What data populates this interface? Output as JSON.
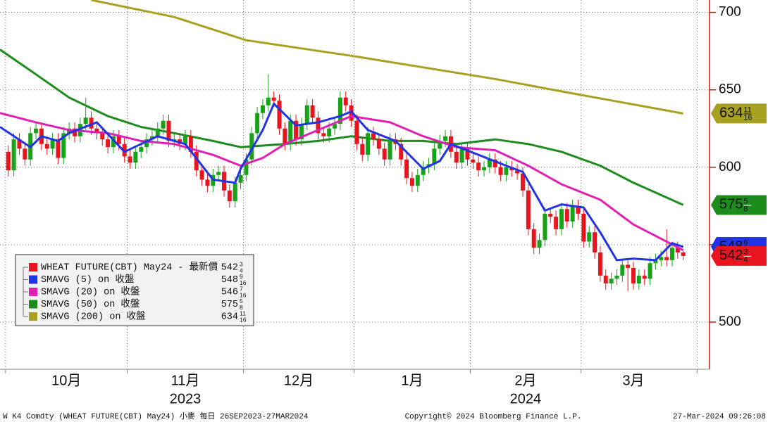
{
  "chart_data": {
    "type": "candlestick",
    "xlim": [
      -1.5,
      126.5
    ],
    "ylim": [
      470,
      708
    ],
    "yticks": [
      500,
      550,
      600,
      650,
      700
    ],
    "xgrid": [
      -0.5,
      21.5,
      42.5,
      62.5,
      83.5,
      103.5,
      124.5
    ],
    "xticks": [
      {
        "value": 10.5,
        "label": "10月"
      },
      {
        "value": 32,
        "label": "11月"
      },
      {
        "value": 52.5,
        "label": "12月"
      },
      {
        "value": 73,
        "label": "1月"
      },
      {
        "value": 93.5,
        "label": "2月"
      },
      {
        "value": 113,
        "label": "3月"
      }
    ],
    "year_labels": [
      {
        "value": 32,
        "label": "2023"
      },
      {
        "value": 93.5,
        "label": "2024"
      }
    ],
    "grid": true,
    "series": [
      {
        "name": "WHEAT FUTURE(CBT) May24 - 最新價",
        "color": "#e8141e",
        "up_color": "#17a317",
        "down_color": "#e8141e",
        "tag": true,
        "tag_text_color": "#ffffff",
        "last": 542.75,
        "last_label": {
          "whole": "542",
          "num": "3",
          "den": "4"
        },
        "x": [
          0,
          1,
          2,
          3,
          4,
          5,
          6,
          7,
          8,
          9,
          10,
          11,
          12,
          13,
          14,
          15,
          16,
          17,
          18,
          19,
          20,
          21,
          22,
          23,
          24,
          25,
          26,
          27,
          28,
          29,
          30,
          31,
          32,
          33,
          34,
          35,
          36,
          37,
          38,
          39,
          40,
          41,
          42,
          43,
          44,
          45,
          46,
          47,
          48,
          49,
          50,
          51,
          52,
          53,
          54,
          55,
          56,
          57,
          58,
          59,
          60,
          61,
          62,
          63,
          64,
          65,
          66,
          67,
          68,
          69,
          70,
          71,
          72,
          73,
          74,
          75,
          76,
          77,
          78,
          79,
          80,
          81,
          82,
          83,
          84,
          85,
          86,
          87,
          88,
          89,
          90,
          91,
          92,
          93,
          94,
          95,
          96,
          97,
          98,
          99,
          100,
          101,
          102,
          103,
          104,
          105,
          106,
          107,
          108,
          109,
          110,
          111,
          112,
          113,
          114,
          115,
          116,
          117,
          118,
          119,
          120,
          121,
          122
        ],
        "open": [
          610,
          598,
          618,
          612,
          605,
          622,
          625,
          615,
          612,
          618,
          606,
          622,
          625,
          620,
          628,
          632,
          625,
          622,
          618,
          613,
          620,
          615,
          607,
          603,
          610,
          613,
          618,
          620,
          625,
          630,
          617,
          618,
          615,
          620,
          610,
          598,
          592,
          588,
          595,
          597,
          585,
          578,
          590,
          595,
          605,
          622,
          635,
          640,
          645,
          643,
          625,
          615,
          630,
          618,
          628,
          640,
          632,
          622,
          620,
          625,
          628,
          645,
          640,
          630,
          615,
          608,
          622,
          618,
          612,
          605,
          618,
          615,
          605,
          593,
          588,
          595,
          600,
          602,
          612,
          617,
          620,
          610,
          603,
          612,
          605,
          603,
          598,
          600,
          605,
          600,
          595,
          600,
          598,
          596,
          585,
          560,
          548,
          553,
          570,
          568,
          560,
          573,
          565,
          575,
          570,
          552,
          558,
          545,
          530,
          525,
          528,
          530,
          537,
          535,
          525,
          530,
          528,
          538,
          540,
          542,
          540,
          548,
          545
        ],
        "high": [
          614,
          622,
          622,
          616,
          626,
          629,
          629,
          619,
          622,
          622,
          626,
          629,
          629,
          632,
          645,
          636,
          629,
          626,
          622,
          624,
          624,
          619,
          611,
          614,
          617,
          622,
          624,
          629,
          634,
          634,
          622,
          622,
          624,
          624,
          614,
          602,
          596,
          599,
          601,
          601,
          589,
          594,
          599,
          609,
          626,
          639,
          644,
          660,
          649,
          647,
          629,
          634,
          634,
          632,
          644,
          644,
          636,
          626,
          629,
          632,
          649,
          649,
          644,
          634,
          619,
          626,
          626,
          622,
          616,
          622,
          622,
          619,
          609,
          597,
          599,
          604,
          606,
          616,
          621,
          624,
          624,
          614,
          616,
          616,
          609,
          607,
          604,
          609,
          609,
          604,
          604,
          604,
          602,
          600,
          589,
          564,
          557,
          574,
          574,
          572,
          577,
          577,
          579,
          579,
          574,
          562,
          562,
          549,
          534,
          532,
          534,
          541,
          541,
          539,
          534,
          534,
          542,
          544,
          546,
          560,
          552,
          552,
          546
        ],
        "low": [
          594,
          594,
          608,
          601,
          601,
          618,
          611,
          608,
          608,
          602,
          602,
          618,
          616,
          616,
          624,
          621,
          618,
          614,
          609,
          609,
          611,
          603,
          599,
          599,
          606,
          609,
          614,
          616,
          621,
          613,
          613,
          611,
          611,
          606,
          594,
          588,
          584,
          584,
          591,
          581,
          574,
          574,
          586,
          591,
          601,
          618,
          631,
          636,
          639,
          621,
          611,
          611,
          614,
          614,
          624,
          628,
          618,
          616,
          616,
          621,
          624,
          636,
          626,
          611,
          604,
          604,
          614,
          608,
          601,
          601,
          611,
          601,
          589,
          584,
          584,
          591,
          596,
          598,
          608,
          613,
          606,
          599,
          599,
          601,
          599,
          594,
          594,
          596,
          596,
          591,
          591,
          594,
          592,
          581,
          556,
          544,
          544,
          549,
          564,
          556,
          556,
          561,
          561,
          566,
          548,
          548,
          541,
          526,
          521,
          521,
          524,
          526,
          520,
          521,
          521,
          524,
          524,
          534,
          536,
          536,
          536,
          541,
          540
        ],
        "close": [
          598,
          618,
          612,
          605,
          622,
          625,
          615,
          612,
          618,
          606,
          622,
          625,
          620,
          628,
          632,
          625,
          622,
          618,
          613,
          620,
          615,
          607,
          603,
          610,
          613,
          618,
          620,
          625,
          630,
          617,
          618,
          615,
          620,
          610,
          598,
          592,
          588,
          595,
          597,
          585,
          578,
          590,
          595,
          605,
          622,
          635,
          640,
          645,
          643,
          625,
          615,
          630,
          618,
          628,
          640,
          632,
          622,
          620,
          625,
          628,
          645,
          640,
          630,
          615,
          608,
          622,
          618,
          612,
          605,
          618,
          615,
          605,
          593,
          588,
          595,
          600,
          602,
          612,
          617,
          620,
          610,
          603,
          612,
          605,
          603,
          598,
          600,
          605,
          600,
          595,
          600,
          598,
          596,
          585,
          560,
          548,
          553,
          570,
          568,
          560,
          573,
          565,
          575,
          570,
          552,
          558,
          545,
          530,
          525,
          528,
          530,
          537,
          535,
          525,
          530,
          528,
          538,
          540,
          542,
          540,
          548,
          545,
          542.75
        ]
      },
      {
        "name": "SMAVG (5)  on 收盤",
        "color": "#2233e6",
        "tag": true,
        "tag_text_color": "#ffffff",
        "last": 548.5625,
        "last_label": {
          "whole": "548",
          "num": "9",
          "den": "16"
        },
        "x": [
          -1.5,
          4,
          6,
          9,
          11,
          16,
          21,
          27,
          32,
          37,
          41,
          42,
          46,
          48,
          52,
          56,
          60,
          62,
          65,
          70,
          75,
          78,
          80,
          85,
          90,
          93,
          97,
          100,
          104,
          107,
          110,
          113,
          117,
          120,
          122
        ],
        "values": [
          626,
          613,
          620,
          617,
          622,
          629,
          610,
          620,
          615,
          592,
          590,
          599,
          624,
          641,
          627,
          629,
          633,
          636,
          624,
          617,
          599,
          604,
          615,
          608,
          601,
          597,
          572,
          576,
          574,
          558,
          540,
          541,
          540,
          551,
          548.5625
        ]
      },
      {
        "name": "SMAVG (20)  on 收盤",
        "color": "#e020b4",
        "tag": false,
        "tag_text_color": "#ffffff",
        "last": 546.4375,
        "last_label": {
          "whole": "546",
          "num": "7",
          "den": "16"
        },
        "x": [
          -1.5,
          5,
          11,
          18,
          24,
          30,
          37,
          42,
          46,
          50,
          56,
          62,
          69,
          75,
          81,
          88,
          94,
          100,
          107,
          113,
          122
        ],
        "values": [
          635,
          629,
          624,
          622,
          617,
          615,
          608,
          601,
          606,
          615,
          624,
          633,
          629,
          620,
          613,
          611,
          601,
          589,
          579,
          563,
          546.4375
        ]
      },
      {
        "name": "SMAVG (50)  on 收盤",
        "color": "#1c8c1c",
        "tag": true,
        "tag_text_color": "#ffffff",
        "last": 575.625,
        "last_label": {
          "whole": "575",
          "num": "5",
          "den": "8"
        },
        "x": [
          -1.5,
          5,
          11,
          18,
          24,
          30,
          37,
          42,
          50,
          56,
          62,
          69,
          75,
          81,
          88,
          94,
          100,
          107,
          113,
          122
        ],
        "values": [
          676,
          660,
          645,
          633,
          626,
          622,
          617,
          613,
          615,
          617,
          620,
          617,
          617,
          615,
          618,
          615,
          610,
          601,
          590,
          575.625
        ]
      },
      {
        "name": "SMAVG (200)  on 收盤",
        "color": "#a8a020",
        "tag": true,
        "tag_text_color": "#1a1a1a",
        "last": 634.6875,
        "last_label": {
          "whole": "634",
          "num": "11",
          "den": "16"
        },
        "x": [
          15,
          30,
          43,
          62,
          88,
          100,
          122
        ],
        "values": [
          708,
          697,
          682,
          672,
          657,
          649,
          634.6875
        ]
      }
    ],
    "footer": {
      "left": "W K4 Comdty (WHEAT FUTURE(CBT) May24) 小麥  每日 26SEP2023-27MAR2024",
      "center": "Copyright© 2024 Bloomberg Finance L.P.",
      "right": "27-Mar-2024 09:26:08"
    }
  }
}
